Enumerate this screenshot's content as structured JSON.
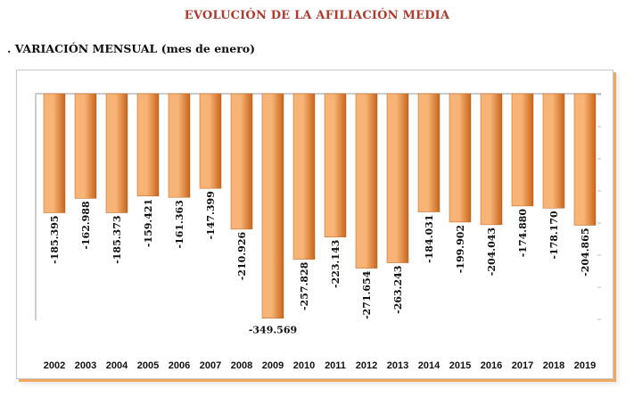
{
  "header": {
    "title": "EVOLUCIÓN DE LA AFILIACIÓN MEDIA",
    "subtitle": ". VARIACIÓN MENSUAL (mes de enero)"
  },
  "colors": {
    "title": "#b03a2e",
    "bar_light": "#f7b476",
    "bar_dark": "#c8651b",
    "frame_shadow": "#f0a760"
  },
  "chart_data": {
    "type": "bar",
    "categories": [
      "2002",
      "2003",
      "2004",
      "2005",
      "2006",
      "2007",
      "2008",
      "2009",
      "2010",
      "2011",
      "2012",
      "2013",
      "2014",
      "2015",
      "2016",
      "2017",
      "2018",
      "2019"
    ],
    "values": [
      -185395,
      -162988,
      -185373,
      -159421,
      -161363,
      -147399,
      -210926,
      -349569,
      -257828,
      -223143,
      -271654,
      -263243,
      -184031,
      -199902,
      -204043,
      -174880,
      -178170,
      -204865
    ],
    "data_labels": [
      "-185.395",
      "-162.988",
      "-185.373",
      "-159.421",
      "-161.363",
      "-147.399",
      "-210.926",
      "-349.569",
      "-257.828",
      "-223.143",
      "-271.654",
      "-263.243",
      "-184.031",
      "-199.902",
      "-204.043",
      "-174.880",
      "-178.170",
      "-204.865"
    ],
    "ylim": [
      -350000,
      0
    ],
    "grid": false,
    "legend": "none"
  }
}
